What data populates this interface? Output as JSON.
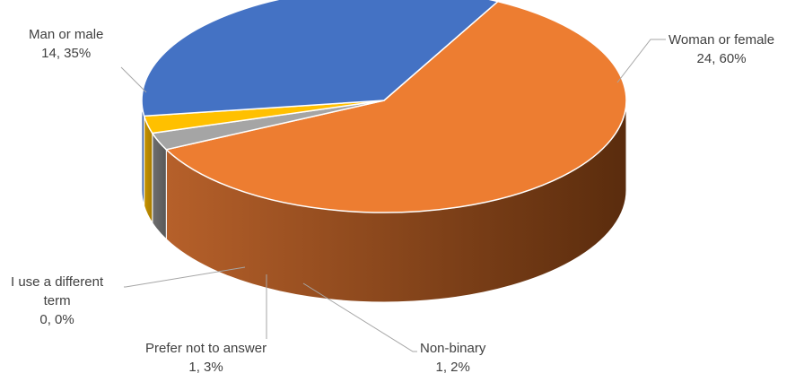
{
  "chart_data": {
    "type": "pie",
    "style": "3d",
    "title": "",
    "start_angle_deg": -62,
    "slices": [
      {
        "name": "Woman or female",
        "value": 24,
        "percent": "60%",
        "color": "#ED7D31",
        "side_color": "#8B4513"
      },
      {
        "name": "Non-binary",
        "value": 1,
        "percent": "2%",
        "color": "#A5A5A5",
        "side_color": "#606060"
      },
      {
        "name": "Prefer not to answer",
        "value": 1,
        "percent": "3%",
        "color": "#FFC000",
        "side_color": "#B58900"
      },
      {
        "name": "I use a different term",
        "value": 0,
        "percent": "0%",
        "color": "#5B9BD5",
        "side_color": "#3A6B97"
      },
      {
        "name": "Man or male",
        "value": 14,
        "percent": "35%",
        "color": "#4472C4",
        "side_color": "#2E4F8A"
      }
    ],
    "labels": [
      {
        "line1": "Woman or female",
        "line2": "24, 60%"
      },
      {
        "line1": "Non-binary",
        "line2": "1, 2%"
      },
      {
        "line1": "Prefer not to answer",
        "line2": "1, 3%"
      },
      {
        "line1": "I use a different",
        "line2": "term",
        "line3": "0, 0%"
      },
      {
        "line1": "Man or male",
        "line2": "14, 35%"
      }
    ]
  }
}
